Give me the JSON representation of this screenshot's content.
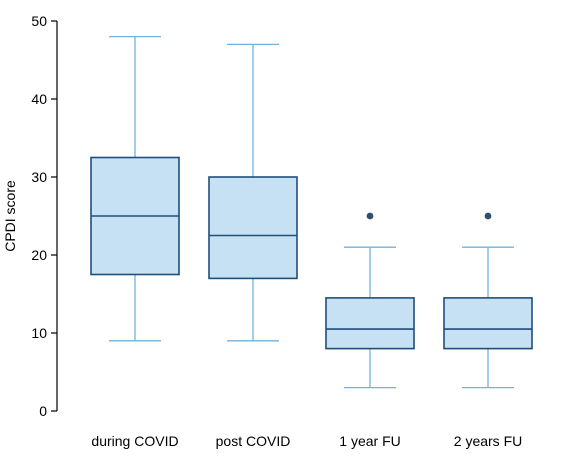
{
  "chart_data": {
    "type": "box",
    "title": "",
    "xlabel": "",
    "ylabel": "CPDI score",
    "ylim": [
      0,
      50
    ],
    "yticks": [
      0,
      10,
      20,
      30,
      40,
      50
    ],
    "grid": false,
    "legend": "none",
    "colors": {
      "box_fill": "#c6e0f4",
      "box_stroke": "#1f4e79",
      "whisker": "#6fb3db",
      "outlier": "#2d5070"
    },
    "categories": [
      "during COVID",
      "post COVID",
      "1 year FU",
      "2 years FU"
    ],
    "boxes": [
      {
        "category": "during COVID",
        "min": 9,
        "q1": 17.5,
        "median": 25,
        "q3": 32.5,
        "max": 48,
        "outliers": []
      },
      {
        "category": "post COVID",
        "min": 9,
        "q1": 17,
        "median": 22.5,
        "q3": 30,
        "max": 47,
        "outliers": []
      },
      {
        "category": "1 year FU",
        "min": 3,
        "q1": 8,
        "median": 10.5,
        "q3": 14.5,
        "max": 21,
        "outliers": [
          25
        ]
      },
      {
        "category": "2 years FU",
        "min": 3,
        "q1": 8,
        "median": 10.5,
        "q3": 14.5,
        "max": 21,
        "outliers": [
          25
        ]
      }
    ]
  }
}
